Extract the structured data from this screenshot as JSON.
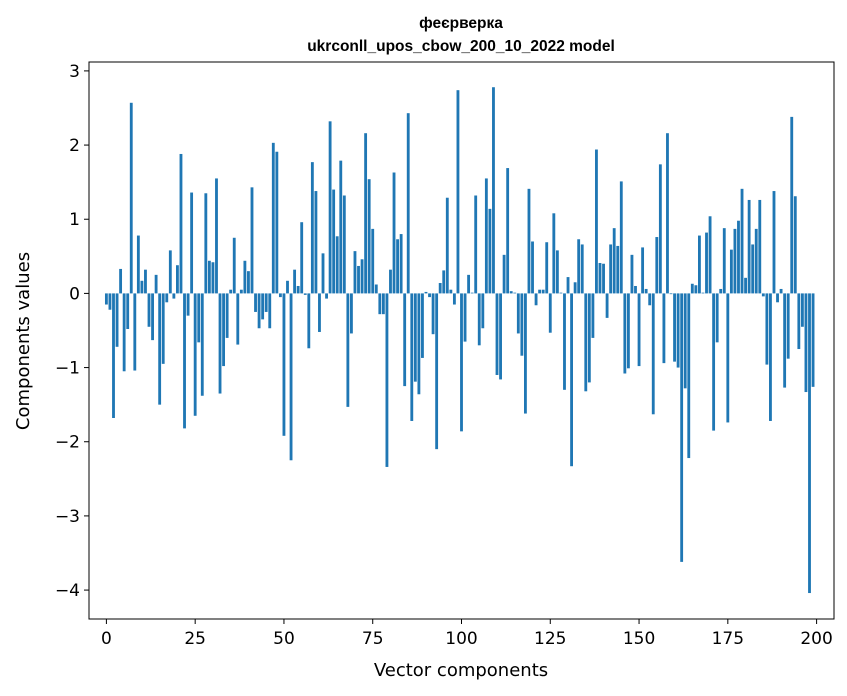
{
  "chart_data": {
    "type": "bar",
    "title": "феєрверка",
    "subtitle": "ukrconll_upos_cbow_200_10_2022 model",
    "xlabel": "Vector components",
    "ylabel": "Components values",
    "xlim": [
      -4.9,
      204.9
    ],
    "ylim": [
      -4.39,
      3.12
    ],
    "xticks": [
      0,
      25,
      50,
      75,
      100,
      125,
      150,
      175,
      200
    ],
    "xtick_labels": [
      "0",
      "25",
      "50",
      "75",
      "100",
      "125",
      "150",
      "175",
      "200"
    ],
    "yticks": [
      -4,
      -3,
      -2,
      -1,
      0,
      1,
      2,
      3
    ],
    "ytick_labels": [
      "−4",
      "−3",
      "−2",
      "−1",
      "0",
      "1",
      "2",
      "3"
    ],
    "grid": false,
    "color": "#1f77b4",
    "x": [
      0,
      1,
      2,
      3,
      4,
      5,
      6,
      7,
      8,
      9,
      10,
      11,
      12,
      13,
      14,
      15,
      16,
      17,
      18,
      19,
      20,
      21,
      22,
      23,
      24,
      25,
      26,
      27,
      28,
      29,
      30,
      31,
      32,
      33,
      34,
      35,
      36,
      37,
      38,
      39,
      40,
      41,
      42,
      43,
      44,
      45,
      46,
      47,
      48,
      49,
      50,
      51,
      52,
      53,
      54,
      55,
      56,
      57,
      58,
      59,
      60,
      61,
      62,
      63,
      64,
      65,
      66,
      67,
      68,
      69,
      70,
      71,
      72,
      73,
      74,
      75,
      76,
      77,
      78,
      79,
      80,
      81,
      82,
      83,
      84,
      85,
      86,
      87,
      88,
      89,
      90,
      91,
      92,
      93,
      94,
      95,
      96,
      97,
      98,
      99,
      100,
      101,
      102,
      103,
      104,
      105,
      106,
      107,
      108,
      109,
      110,
      111,
      112,
      113,
      114,
      115,
      116,
      117,
      118,
      119,
      120,
      121,
      122,
      123,
      124,
      125,
      126,
      127,
      128,
      129,
      130,
      131,
      132,
      133,
      134,
      135,
      136,
      137,
      138,
      139,
      140,
      141,
      142,
      143,
      144,
      145,
      146,
      147,
      148,
      149,
      150,
      151,
      152,
      153,
      154,
      155,
      156,
      157,
      158,
      159,
      160,
      161,
      162,
      163,
      164,
      165,
      166,
      167,
      168,
      169,
      170,
      171,
      172,
      173,
      174,
      175,
      176,
      177,
      178,
      179,
      180,
      181,
      182,
      183,
      184,
      185,
      186,
      187,
      188,
      189,
      190,
      191,
      192,
      193,
      194,
      195,
      196,
      197,
      198,
      199
    ],
    "values": [
      -0.15,
      -0.22,
      -1.68,
      -0.72,
      0.33,
      -1.05,
      -0.48,
      2.57,
      -1.04,
      0.78,
      0.17,
      0.32,
      -0.45,
      -0.63,
      0.25,
      -1.5,
      -0.95,
      -0.12,
      0.58,
      -0.07,
      0.38,
      1.88,
      -1.82,
      -0.3,
      1.36,
      -1.65,
      -0.66,
      -1.38,
      1.35,
      0.44,
      0.42,
      1.55,
      -1.35,
      -0.98,
      -0.6,
      0.05,
      0.75,
      -0.69,
      0.05,
      0.44,
      0.3,
      1.43,
      -0.25,
      -0.47,
      -0.35,
      -0.25,
      -0.47,
      2.03,
      1.91,
      -0.05,
      -1.92,
      0.17,
      -2.25,
      0.32,
      0.1,
      0.96,
      -0.02,
      -0.74,
      1.77,
      1.38,
      -0.52,
      0.54,
      -0.07,
      2.32,
      1.4,
      0.77,
      1.79,
      1.32,
      -1.53,
      -0.54,
      0.57,
      0.37,
      0.46,
      2.16,
      1.54,
      0.87,
      0.12,
      -0.28,
      -0.28,
      -2.34,
      0.32,
      1.63,
      0.73,
      0.8,
      -1.25,
      2.43,
      -1.72,
      -1.19,
      -1.36,
      -0.87,
      0.02,
      -0.05,
      -0.55,
      -2.1,
      0.14,
      0.31,
      1.29,
      0.05,
      -0.15,
      2.74,
      -1.86,
      -0.65,
      0.25,
      0.01,
      1.32,
      -0.7,
      -0.47,
      1.55,
      1.14,
      2.78,
      -1.1,
      -1.16,
      0.52,
      1.69,
      0.03,
      0.01,
      -0.54,
      -0.84,
      -1.62,
      1.41,
      0.7,
      -0.16,
      0.05,
      0.05,
      0.69,
      -0.53,
      1.08,
      0.58,
      0.01,
      -1.3,
      0.22,
      -2.33,
      0.15,
      0.73,
      0.66,
      -1.32,
      -1.2,
      -0.6,
      1.94,
      0.41,
      0.4,
      -0.33,
      0.66,
      0.88,
      0.64,
      1.51,
      -1.08,
      -1.01,
      0.52,
      0.1,
      -0.98,
      0.62,
      0.06,
      -0.16,
      -1.63,
      0.76,
      1.74,
      -0.94,
      2.16,
      -0.01,
      -0.92,
      -1.0,
      -3.62,
      -1.28,
      -2.22,
      0.13,
      0.11,
      0.78,
      0.01,
      0.82,
      1.04,
      -1.85,
      -0.66,
      0.06,
      0.88,
      -1.74,
      0.59,
      0.87,
      0.98,
      1.41,
      0.21,
      1.26,
      0.66,
      0.87,
      1.26,
      -0.04,
      -0.96,
      -1.72,
      1.38,
      -0.12,
      0.06,
      -1.27,
      -0.88,
      2.38,
      1.31,
      -0.75,
      -0.45,
      -1.33,
      -4.04,
      -1.26
    ]
  }
}
